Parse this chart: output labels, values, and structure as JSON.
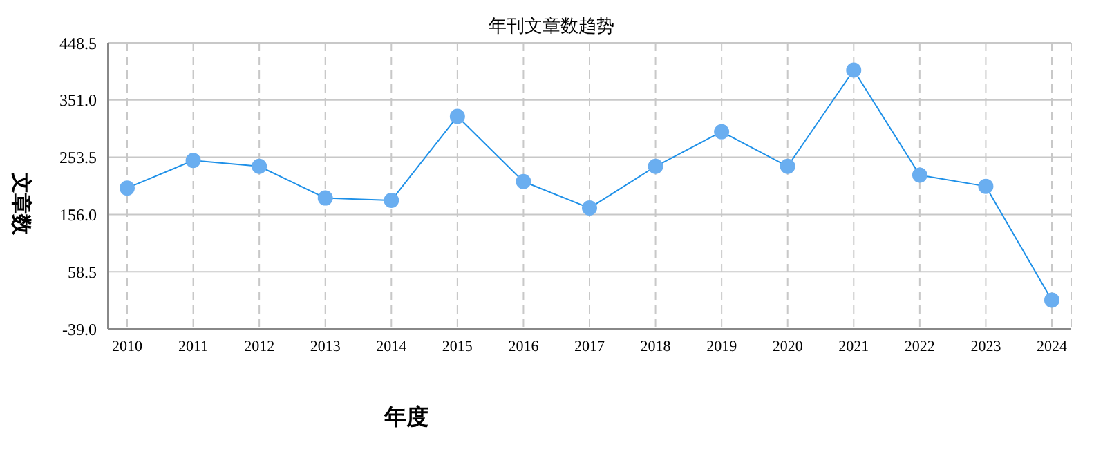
{
  "chart_data": {
    "type": "line",
    "title": "年刊文章数趋势",
    "xlabel": "年度",
    "ylabel": "文章数",
    "categories": [
      "2010",
      "2011",
      "2012",
      "2013",
      "2014",
      "2015",
      "2016",
      "2017",
      "2018",
      "2019",
      "2020",
      "2021",
      "2022",
      "2023",
      "2024"
    ],
    "series": [
      {
        "color": "#1e90e8",
        "values": [
          201,
          248,
          238,
          184,
          180,
          323,
          212,
          167,
          238,
          297,
          238,
          402,
          223,
          204,
          10
        ]
      }
    ],
    "ylim": [
      -39,
      448.5
    ],
    "yticks": [
      {
        "value": -39,
        "label": "-39.0"
      },
      58.5,
      {
        "value": 156,
        "label": "156.0"
      },
      253.5,
      {
        "value": 351,
        "label": "351.0"
      },
      448.5
    ],
    "grid": true,
    "marker": "circle",
    "line_style": "solid"
  }
}
